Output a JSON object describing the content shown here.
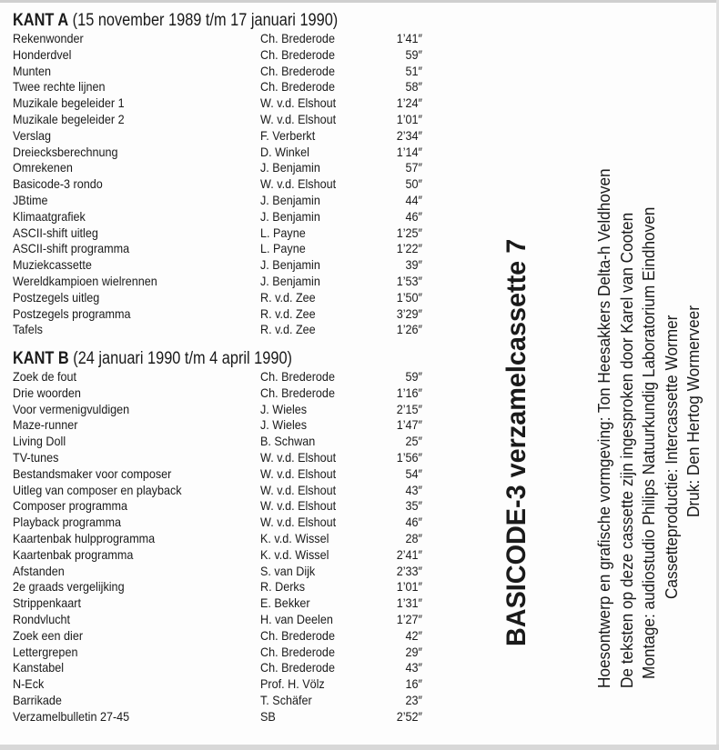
{
  "side_a": {
    "name": "KANT A",
    "period": "(15 november 1989 t/m 17 januari 1990)",
    "tracks": [
      {
        "title": "Rekenwonder",
        "author": "Ch. Brederode",
        "duration": "1’41″"
      },
      {
        "title": "Honderdvel",
        "author": "Ch. Brederode",
        "duration": "59″"
      },
      {
        "title": "Munten",
        "author": "Ch. Brederode",
        "duration": "51″"
      },
      {
        "title": "Twee rechte lijnen",
        "author": "Ch. Brederode",
        "duration": "58″"
      },
      {
        "title": "Muzikale begeleider 1",
        "author": "W. v.d. Elshout",
        "duration": "1’24″"
      },
      {
        "title": "Muzikale begeleider 2",
        "author": "W. v.d. Elshout",
        "duration": "1’01″"
      },
      {
        "title": "Verslag",
        "author": "F. Verberkt",
        "duration": "2’34″"
      },
      {
        "title": "Dreiecksberechnung",
        "author": "D. Winkel",
        "duration": "1’14″"
      },
      {
        "title": "Omrekenen",
        "author": "J. Benjamin",
        "duration": "57″"
      },
      {
        "title": "Basicode-3 rondo",
        "author": "W. v.d. Elshout",
        "duration": "50″"
      },
      {
        "title": "JBtime",
        "author": "J. Benjamin",
        "duration": "44″"
      },
      {
        "title": "Klimaatgrafiek",
        "author": "J. Benjamin",
        "duration": "46″"
      },
      {
        "title": "ASCII-shift uitleg",
        "author": "L. Payne",
        "duration": "1’25″"
      },
      {
        "title": "ASCII-shift programma",
        "author": "L. Payne",
        "duration": "1’22″"
      },
      {
        "title": "Muziekcassette",
        "author": "J. Benjamin",
        "duration": "39″"
      },
      {
        "title": "Wereldkampioen wielrennen",
        "author": "J. Benjamin",
        "duration": "1’53″"
      },
      {
        "title": "Postzegels uitleg",
        "author": "R. v.d. Zee",
        "duration": "1’50″"
      },
      {
        "title": "Postzegels programma",
        "author": "R. v.d. Zee",
        "duration": "3’29″"
      },
      {
        "title": "Tafels",
        "author": "R. v.d. Zee",
        "duration": "1’26″"
      }
    ]
  },
  "side_b": {
    "name": "KANT B",
    "period": "(24 januari 1990 t/m 4 april 1990)",
    "tracks": [
      {
        "title": "Zoek de fout",
        "author": "Ch. Brederode",
        "duration": "59″"
      },
      {
        "title": "Drie woorden",
        "author": "Ch. Brederode",
        "duration": "1’16″"
      },
      {
        "title": "Voor vermenigvuldigen",
        "author": "J. Wieles",
        "duration": "2’15″"
      },
      {
        "title": "Maze-runner",
        "author": "J. Wieles",
        "duration": "1’47″"
      },
      {
        "title": "Living Doll",
        "author": "B. Schwan",
        "duration": "25″"
      },
      {
        "title": "TV-tunes",
        "author": "W. v.d. Elshout",
        "duration": "1’56″"
      },
      {
        "title": "Bestandsmaker voor composer",
        "author": "W. v.d. Elshout",
        "duration": "54″"
      },
      {
        "title": "Uitleg van composer en playback",
        "author": "W. v.d. Elshout",
        "duration": "43″"
      },
      {
        "title": "Composer programma",
        "author": "W. v.d. Elshout",
        "duration": "35″"
      },
      {
        "title": "Playback programma",
        "author": "W. v.d. Elshout",
        "duration": "46″"
      },
      {
        "title": "Kaartenbak hulpprogramma",
        "author": "K. v.d. Wissel",
        "duration": "28″"
      },
      {
        "title": "Kaartenbak programma",
        "author": "K. v.d. Wissel",
        "duration": "2’41″"
      },
      {
        "title": "Afstanden",
        "author": "S. van Dijk",
        "duration": "2’33″"
      },
      {
        "title": "2e graads vergelijking",
        "author": "R. Derks",
        "duration": "1’01″"
      },
      {
        "title": "Strippenkaart",
        "author": "E. Bekker",
        "duration": "1’31″"
      },
      {
        "title": "Rondvlucht",
        "author": "H. van Deelen",
        "duration": "1’27″"
      },
      {
        "title": "Zoek een dier",
        "author": "Ch. Brederode",
        "duration": "42″"
      },
      {
        "title": "Lettergrepen",
        "author": "Ch. Brederode",
        "duration": "29″"
      },
      {
        "title": "Kanstabel",
        "author": "Ch. Brederode",
        "duration": "43″"
      },
      {
        "title": "N-Eck",
        "author": "Prof. H. Völz",
        "duration": "16″"
      },
      {
        "title": "Barrikade",
        "author": "T. Schäfer",
        "duration": "23″"
      },
      {
        "title": "Verzamelbulletin 27-45",
        "author": "SB",
        "duration": "2’52″"
      }
    ]
  },
  "cover": {
    "title": "BASICODE-3 verzamelcassette 7",
    "credits": [
      "Hoesontwerp en grafische vormgeving: Ton Heesakkers Delta-h Veldhoven",
      "De teksten op deze cassette zijn ingesproken door Karel van Cooten",
      "Montage: audiostudio Philips Natuurkundig Laboratorium Eindhoven",
      "Cassetteproductie: Intercassette Wormer",
      "Druk: Den Hertog Wormerveer"
    ]
  }
}
